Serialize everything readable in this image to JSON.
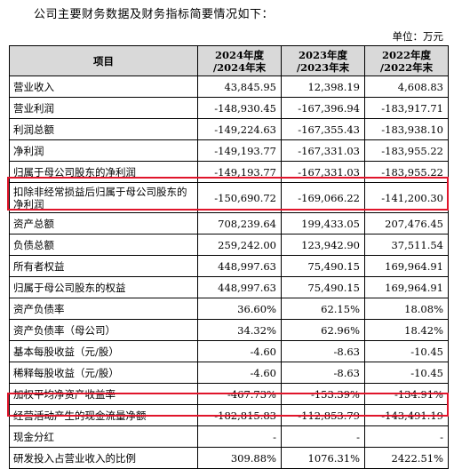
{
  "intro": "公司主要财务数据及财务指标简要情况如下：",
  "unit": "单位：万元",
  "header": {
    "item": "项目",
    "col1_line1": "2024年度",
    "col1_line2": "/2024年末",
    "col2_line1": "2023年度",
    "col2_line2": "/2023年末",
    "col3_line1": "2022年度",
    "col3_line2": "/2022年末"
  },
  "rows": [
    {
      "label": "营业收入",
      "v1": "43,845.95",
      "v2": "12,398.19",
      "v3": "4,608.83"
    },
    {
      "label": "营业利润",
      "v1": "-148,930.45",
      "v2": "-167,396.94",
      "v3": "-183,917.71"
    },
    {
      "label": "利润总额",
      "v1": "-149,224.63",
      "v2": "-167,355.43",
      "v3": "-183,938.10"
    },
    {
      "label": "净利润",
      "v1": "-149,193.77",
      "v2": "-167,331.03",
      "v3": "-183,955.22"
    },
    {
      "label": "归属于母公司股东的净利润",
      "v1": "-149,193.77",
      "v2": "-167,331.03",
      "v3": "-183,955.22"
    },
    {
      "label": "扣除非经常损益后归属于母公司股东的净利润",
      "v1": "-150,690.72",
      "v2": "-169,066.22",
      "v3": "-141,200.30"
    },
    {
      "label": "资产总额",
      "v1": "708,239.64",
      "v2": "199,433.05",
      "v3": "207,476.45"
    },
    {
      "label": "负债总额",
      "v1": "259,242.00",
      "v2": "123,942.90",
      "v3": "37,511.54"
    },
    {
      "label": "所有者权益",
      "v1": "448,997.63",
      "v2": "75,490.15",
      "v3": "169,964.91"
    },
    {
      "label": "归属于母公司股东的权益",
      "v1": "448,997.63",
      "v2": "75,490.15",
      "v3": "169,964.91"
    },
    {
      "label": "资产负债率",
      "v1": "36.60%",
      "v2": "62.15%",
      "v3": "18.08%"
    },
    {
      "label": "资产负债率（母公司）",
      "v1": "34.32%",
      "v2": "62.96%",
      "v3": "18.42%"
    },
    {
      "label": "基本每股收益（元/股）",
      "v1": "-4.60",
      "v2": "-8.63",
      "v3": "-10.45"
    },
    {
      "label": "稀释每股收益（元/股）",
      "v1": "-4.60",
      "v2": "-8.63",
      "v3": "-10.45"
    },
    {
      "label": "加权平均净资产收益率",
      "v1": "-467.73%",
      "v2": "-153.39%",
      "v3": "-134.91%"
    },
    {
      "label": "经营活动产生的现金流量净额",
      "v1": "-182,815.83",
      "v2": "-112,853.79",
      "v3": "-143,491.19"
    },
    {
      "label": "现金分红",
      "v1": "-",
      "v2": "-",
      "v3": "-"
    },
    {
      "label": "研发投入占营业收入的比例",
      "v1": "309.88%",
      "v2": "1076.31%",
      "v3": "2422.51%"
    }
  ],
  "highlight_color": "#e0152b"
}
